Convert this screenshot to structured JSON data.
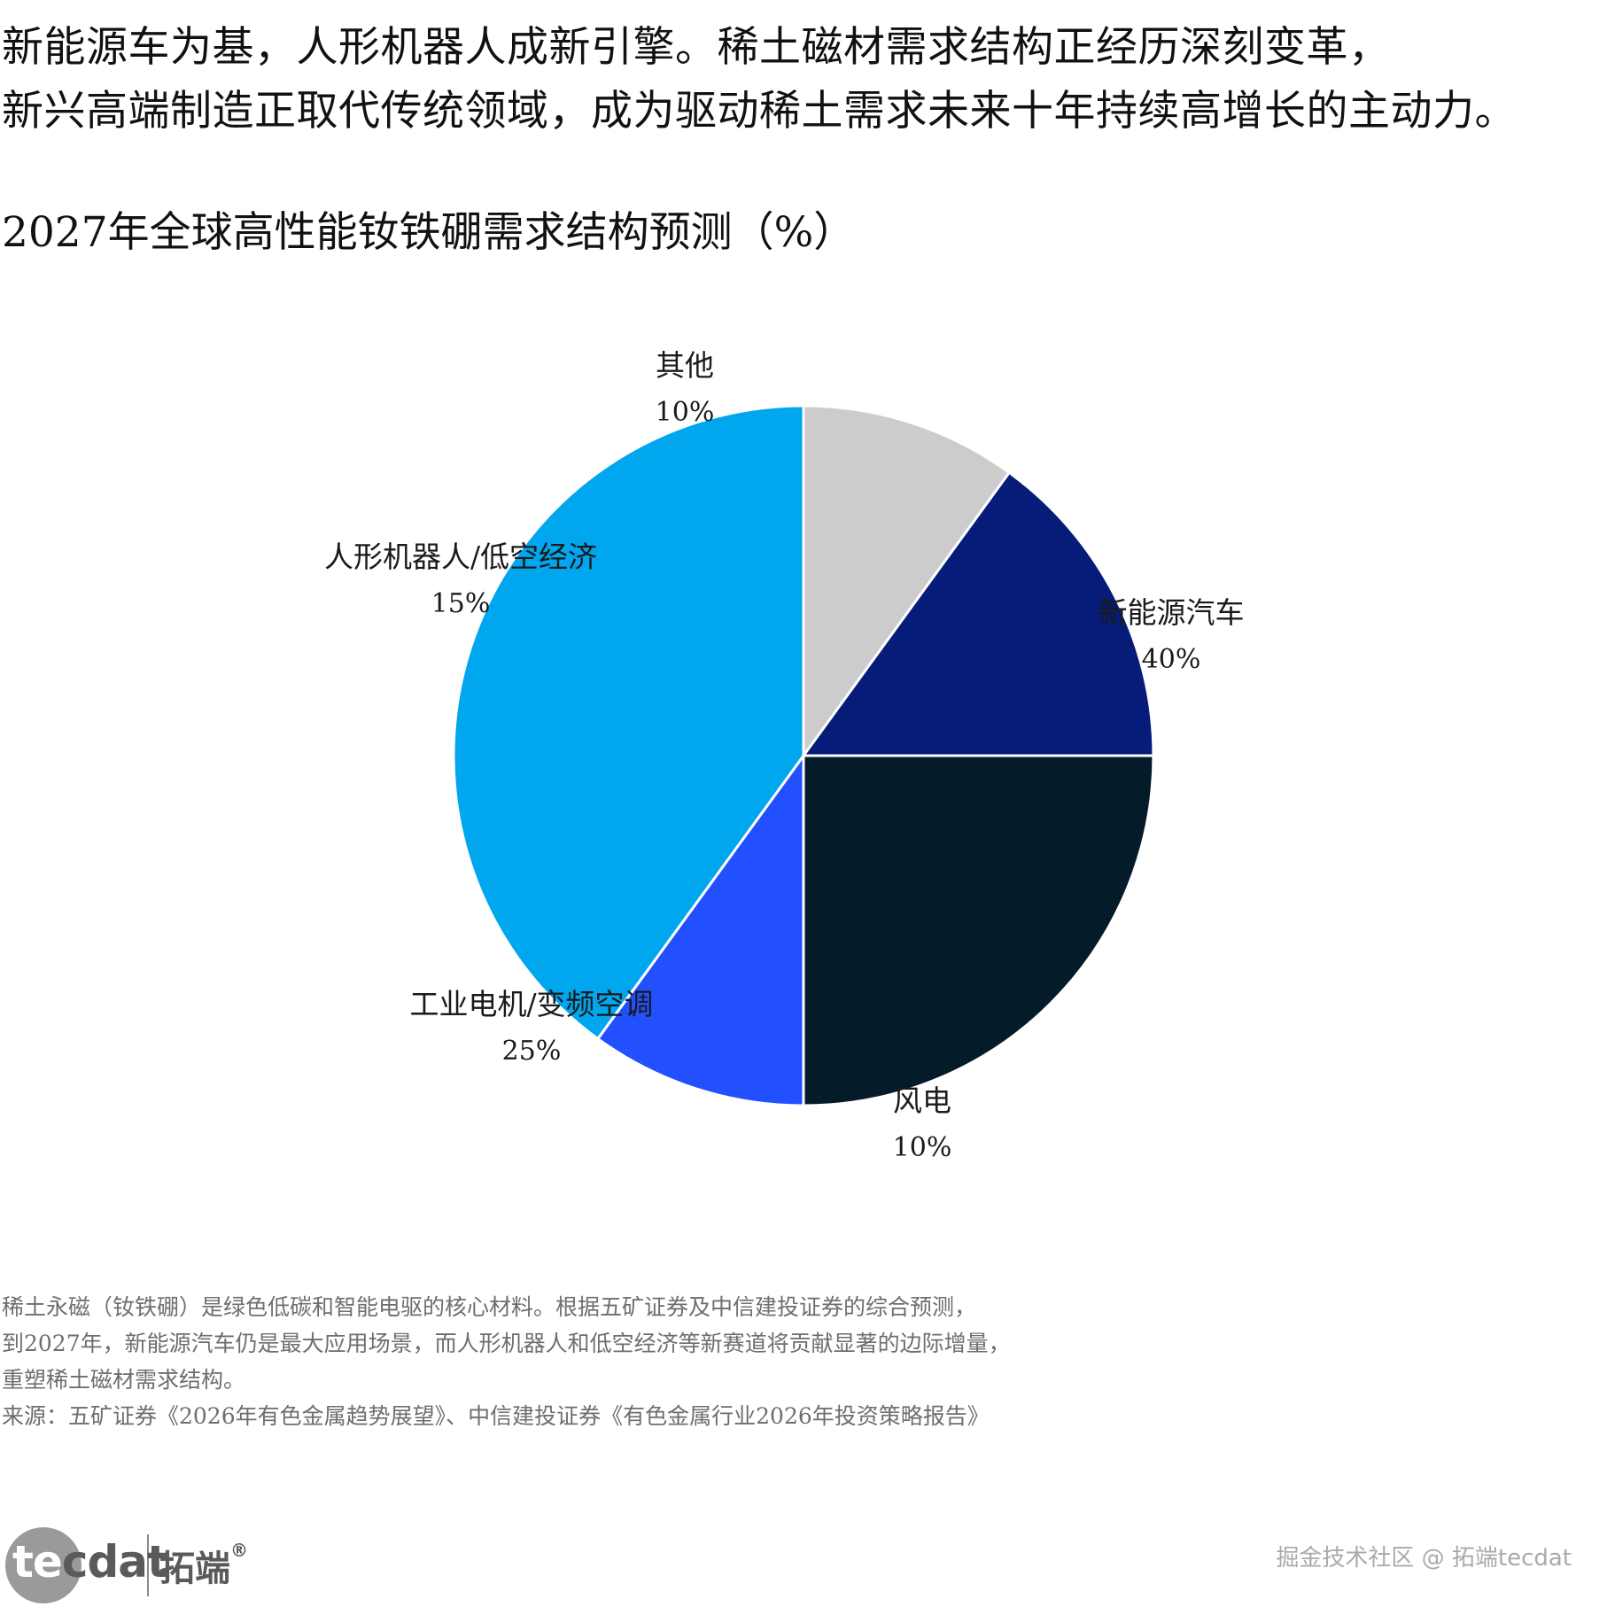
{
  "headline": {
    "line1": "新能源车为基，人形机器人成新引擎。稀土磁材需求结构正经历深刻变革，",
    "line2": "新兴高端制造正取代传统领域，成为驱动稀土需求未来十年持续高增长的主动力。"
  },
  "chart_data": {
    "type": "pie",
    "title": "2027年全球高性能钕铁硼需求结构预测（%）",
    "start_angle_deg": 0,
    "direction": "clockwise",
    "slices": [
      {
        "sweep_share": 10,
        "color": "#cccccc"
      },
      {
        "sweep_share": 15,
        "color": "#061c78"
      },
      {
        "sweep_share": 25,
        "color": "#041b2a"
      },
      {
        "sweep_share": 10,
        "color": "#2350ff"
      },
      {
        "sweep_share": 40,
        "color": "#00a6ee"
      }
    ],
    "labels": [
      {
        "name": "其他",
        "value": "10%"
      },
      {
        "name": "新能源汽车",
        "value": "40%"
      },
      {
        "name": "风电",
        "value": "10%"
      },
      {
        "name": "工业电机/变频空调",
        "value": "25%"
      },
      {
        "name": "人形机器人/低空经济",
        "value": "15%"
      }
    ]
  },
  "note": {
    "line1": "稀土永磁（钕铁硼）是绿色低碳和智能电驱的核心材料。根据五矿证券及中信建投证券的综合预测，",
    "line2": "到2027年，新能源汽车仍是最大应用场景，而人形机器人和低空经济等新赛道将贡献显著的边际增量，",
    "line3": "重塑稀土磁材需求结构。",
    "source": "来源：五矿证券《2026年有色金属趋势展望》、中信建投证券《有色金属行业2026年投资策略报告》"
  },
  "logo": {
    "word_left": "te",
    "word_inner": "c",
    "word_right": "dat",
    "cn": "拓端",
    "reg": "®"
  },
  "watermark": "掘金技术社区 @ 拓端tecdat"
}
